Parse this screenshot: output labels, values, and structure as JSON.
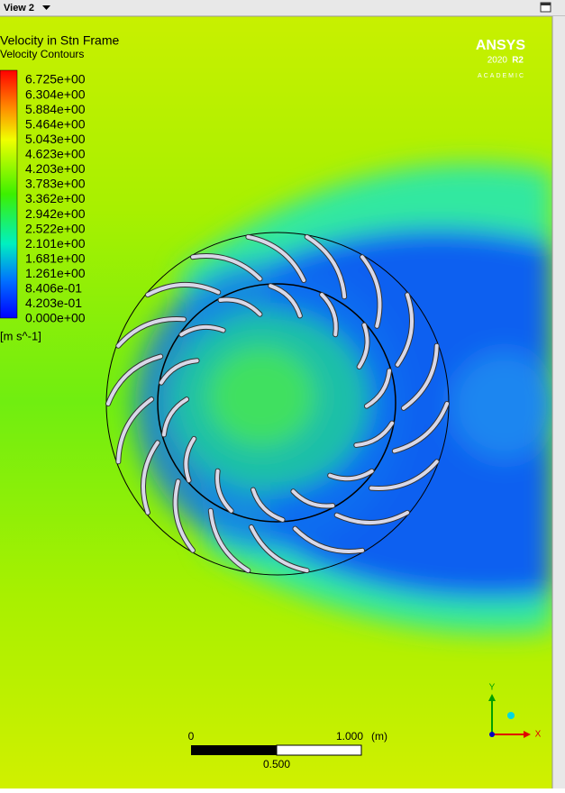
{
  "window": {
    "title": "View 2"
  },
  "legend": {
    "title": "Velocity in Stn Frame",
    "subtitle": "Velocity Contours",
    "labels": [
      "6.725e+00",
      "6.304e+00",
      "5.884e+00",
      "5.464e+00",
      "5.043e+00",
      "4.623e+00",
      "4.203e+00",
      "3.783e+00",
      "3.362e+00",
      "2.942e+00",
      "2.522e+00",
      "2.101e+00",
      "1.681e+00",
      "1.261e+00",
      "8.406e-01",
      "4.203e-01",
      "0.000e+00"
    ],
    "unit": "[m s^-1]"
  },
  "logo": {
    "brand": "ANSYS",
    "version": "2020",
    "release": "R2",
    "edition": "ACADEMIC"
  },
  "scale_bar": {
    "start": "0",
    "end": "1.000",
    "unit": "(m)",
    "middle": "0.500"
  },
  "axes": {
    "y": "Y",
    "x": "X"
  }
}
